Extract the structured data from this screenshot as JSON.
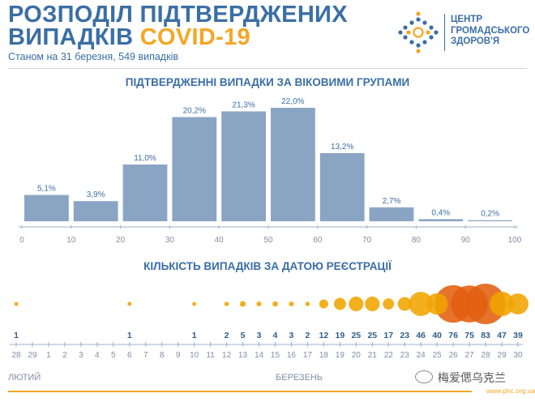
{
  "header": {
    "title_line1": "РОЗПОДІЛ ПІДТВЕРДЖЕНИХ",
    "title_line2_prefix": "ВИПАДКІВ ",
    "title_line2_accent": "COVID-19",
    "subtitle": "Станом на 31 березня, 549 випадків"
  },
  "logo": {
    "line1": "ЦЕНТР",
    "line2": "ГРОМАДСЬКОГО",
    "line3": "ЗДОРОВ'Я",
    "colors": {
      "blue": "#3a6ea5",
      "orange": "#f5a623"
    }
  },
  "colors": {
    "bar": "#8aa4c4",
    "bubble": "#f0a500",
    "bubble_dark": "#e35f0f",
    "text": "#3a6ea5",
    "axis": "#9bb0c8"
  },
  "footer": {
    "url": "www.phc.org.ua",
    "watermark": "梅爱偲乌克兰"
  },
  "chart_data": [
    {
      "type": "bar",
      "title": "ПІДТВЕРДЖЕННІ ВИПАДКИ ЗА ВІКОВИМИ ГРУПАМИ",
      "unit": "%",
      "bins": [
        [
          0,
          10
        ],
        [
          10,
          20
        ],
        [
          20,
          30
        ],
        [
          30,
          40
        ],
        [
          40,
          50
        ],
        [
          50,
          60
        ],
        [
          60,
          70
        ],
        [
          70,
          80
        ],
        [
          80,
          90
        ],
        [
          90,
          100
        ]
      ],
      "values": [
        5.1,
        3.9,
        11.0,
        20.2,
        21.3,
        22.0,
        13.2,
        2.7,
        0.4,
        0.2
      ],
      "labels": [
        "5,1%",
        "3,9%",
        "11,0%",
        "20,2%",
        "21,3%",
        "22,0%",
        "13,2%",
        "2,7%",
        "0,4%",
        "0,2%"
      ],
      "x_ticks": [
        "0",
        "10",
        "20",
        "30",
        "40",
        "50",
        "60",
        "70",
        "80",
        "90",
        "100"
      ],
      "xlim": [
        0,
        100
      ],
      "ylim": [
        0,
        22.0
      ],
      "grid": false
    },
    {
      "type": "scatter",
      "title": "КІЛЬКІСТЬ ВИПАДКІВ ЗА ДАТОЮ РЕЄСТРАЦІЇ",
      "dates": [
        "28",
        "29",
        "1",
        "2",
        "3",
        "4",
        "5",
        "6",
        "7",
        "8",
        "9",
        "10",
        "11",
        "12",
        "13",
        "14",
        "15",
        "16",
        "17",
        "18",
        "19",
        "20",
        "21",
        "22",
        "23",
        "24",
        "25",
        "26",
        "27",
        "28",
        "29",
        "30"
      ],
      "counts": [
        1,
        null,
        null,
        null,
        null,
        null,
        null,
        1,
        null,
        null,
        null,
        1,
        null,
        2,
        5,
        3,
        4,
        3,
        2,
        12,
        19,
        25,
        25,
        17,
        23,
        46,
        40,
        76,
        75,
        83,
        47,
        39
      ],
      "months": [
        "ЛЮТИЙ",
        "БЕРЕЗЕНЬ"
      ]
    }
  ]
}
